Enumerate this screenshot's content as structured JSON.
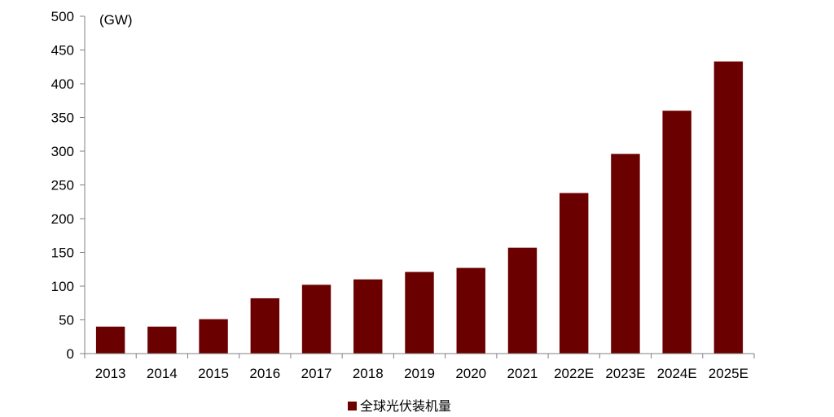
{
  "chart_data": {
    "type": "bar",
    "unit": "(GW)",
    "categories": [
      "2013",
      "2014",
      "2015",
      "2016",
      "2017",
      "2018",
      "2019",
      "2020",
      "2021",
      "2022E",
      "2023E",
      "2024E",
      "2025E"
    ],
    "series": [
      {
        "name": "全球光伏装机量",
        "color": "#6B0000",
        "values": [
          40,
          40,
          51,
          82,
          102,
          110,
          121,
          127,
          157,
          238,
          296,
          360,
          433
        ]
      }
    ],
    "ylim": [
      0,
      500
    ],
    "yticks": [
      0,
      50,
      100,
      150,
      200,
      250,
      300,
      350,
      400,
      450,
      500
    ],
    "grid": false,
    "legend": "bottom-center"
  }
}
